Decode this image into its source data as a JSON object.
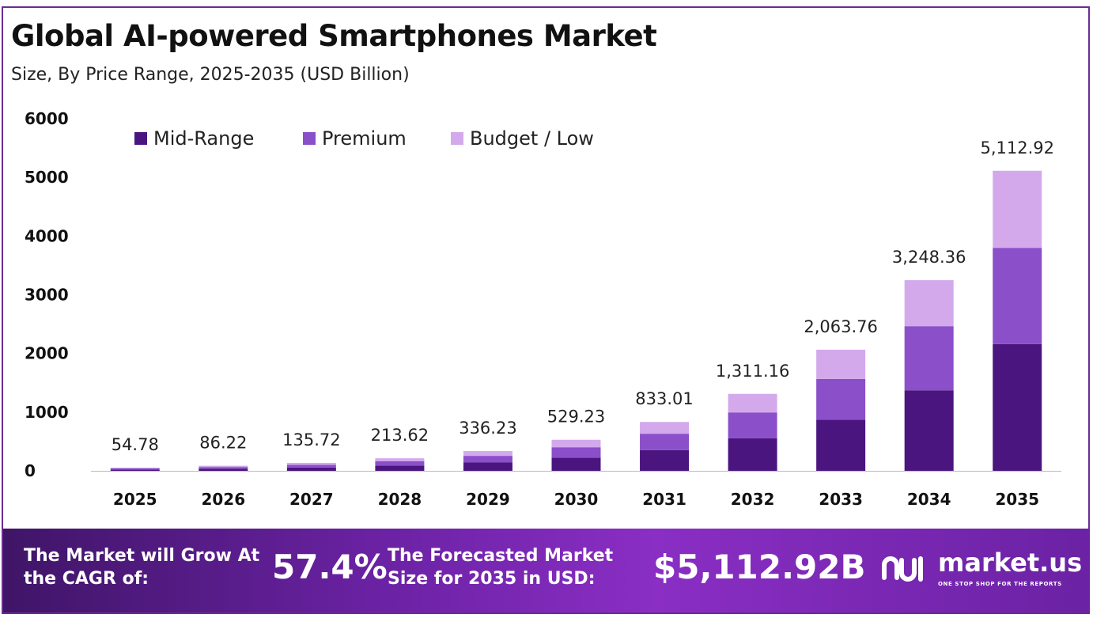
{
  "header": {
    "title": "Global AI-powered Smartphones Market",
    "subtitle": "Size, By Price Range, 2025-2035 (USD Billion)"
  },
  "footer": {
    "cagr_label": "The Market will Grow At the CAGR of:",
    "cagr_value": "57.4%",
    "forecast_label": "The Forecasted Market Size for 2035 in USD:",
    "forecast_value": "$5,112.92B",
    "brand_name": "market.us",
    "brand_tagline": "ONE STOP SHOP FOR THE REPORTS"
  },
  "colors": {
    "mid_range": "#4b1580",
    "premium": "#8b4fc9",
    "budget_low": "#d3a9ec",
    "axis": "#bbbbbb",
    "footer_start": "#3f1567",
    "footer_mid": "#8a2ec4"
  },
  "chart_data": {
    "type": "bar",
    "stacked": true,
    "title": "Global AI-powered Smartphones Market",
    "subtitle": "Size, By Price Range, 2025-2035 (USD Billion)",
    "xlabel": "",
    "ylabel": "",
    "ylim": [
      0,
      6000
    ],
    "yticks": [
      0,
      1000,
      2000,
      3000,
      4000,
      5000,
      6000
    ],
    "grid": false,
    "legend_position": "top-left",
    "categories": [
      "2025",
      "2026",
      "2027",
      "2028",
      "2029",
      "2030",
      "2031",
      "2032",
      "2033",
      "2034",
      "2035"
    ],
    "series": [
      {
        "name": "Mid-Range",
        "color": "#4b1580",
        "values": [
          23,
          36,
          57,
          90,
          142,
          224,
          352,
          554,
          872,
          1372,
          2160
        ]
      },
      {
        "name": "Premium",
        "color": "#8b4fc9",
        "values": [
          18,
          29,
          46,
          72,
          113,
          178,
          280,
          441,
          694,
          1093,
          1640
        ]
      },
      {
        "name": "Budget / Low",
        "color": "#d3a9ec",
        "values": [
          13.78,
          21.22,
          32.72,
          51.62,
          81.23,
          127.23,
          201.01,
          316.16,
          497.76,
          783.36,
          1312.92
        ]
      }
    ],
    "totals": [
      54.78,
      86.22,
      135.72,
      213.62,
      336.23,
      529.23,
      833.01,
      1311.16,
      2063.76,
      3248.36,
      5112.92
    ],
    "total_labels": [
      "54.78",
      "86.22",
      "135.72",
      "213.62",
      "336.23",
      "529.23",
      "833.01",
      "1,311.16",
      "2,063.76",
      "3,248.36",
      "5,112.92"
    ]
  }
}
